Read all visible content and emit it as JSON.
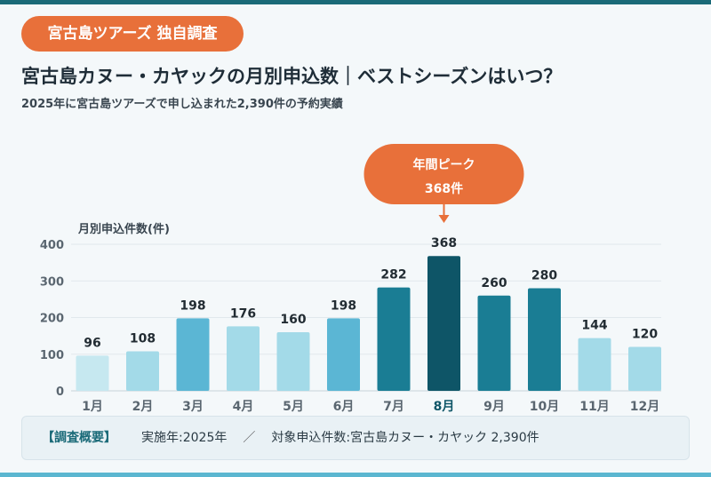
{
  "colors": {
    "accent": "#e8703a",
    "dark_teal": "#0e5567",
    "teal": "#1a7d94",
    "mid_blue": "#5bb6d4",
    "light_blue": "#a3dae8",
    "pale_blue": "#c6e8f0",
    "background": "#f4f8fa"
  },
  "badge": {
    "label": "宮古島ツアーズ 独自調査"
  },
  "header": {
    "title": "宮古島カヌー・カヤックの月別申込数｜ベストシーズンはいつ？",
    "subtitle": "2025年に宮古島ツアーズで申し込まれた2,390件の予約実績"
  },
  "callout": {
    "line1": "年間ピーク",
    "line2": "368件"
  },
  "chart_data": {
    "type": "bar",
    "ylabel": "月別申込件数(件)",
    "ylim": [
      0,
      400
    ],
    "yticks": [
      0,
      100,
      200,
      300,
      400
    ],
    "grid": true,
    "categories": [
      "1月",
      "2月",
      "3月",
      "4月",
      "5月",
      "6月",
      "7月",
      "8月",
      "9月",
      "10月",
      "11月",
      "12月"
    ],
    "values": [
      96,
      108,
      198,
      176,
      160,
      198,
      282,
      368,
      260,
      280,
      144,
      120
    ],
    "bar_colors": [
      "#c6e8f0",
      "#a3dae8",
      "#5bb6d4",
      "#a3dae8",
      "#a3dae8",
      "#5bb6d4",
      "#1a7d94",
      "#0e5567",
      "#1a7d94",
      "#1a7d94",
      "#a3dae8",
      "#a3dae8"
    ],
    "highlight_index": 7
  },
  "footer": {
    "label": "【調査概要】",
    "item1": "実施年:2025年",
    "separator": "／",
    "item2": "対象申込件数:宮古島カヌー・カヤック 2,390件"
  }
}
